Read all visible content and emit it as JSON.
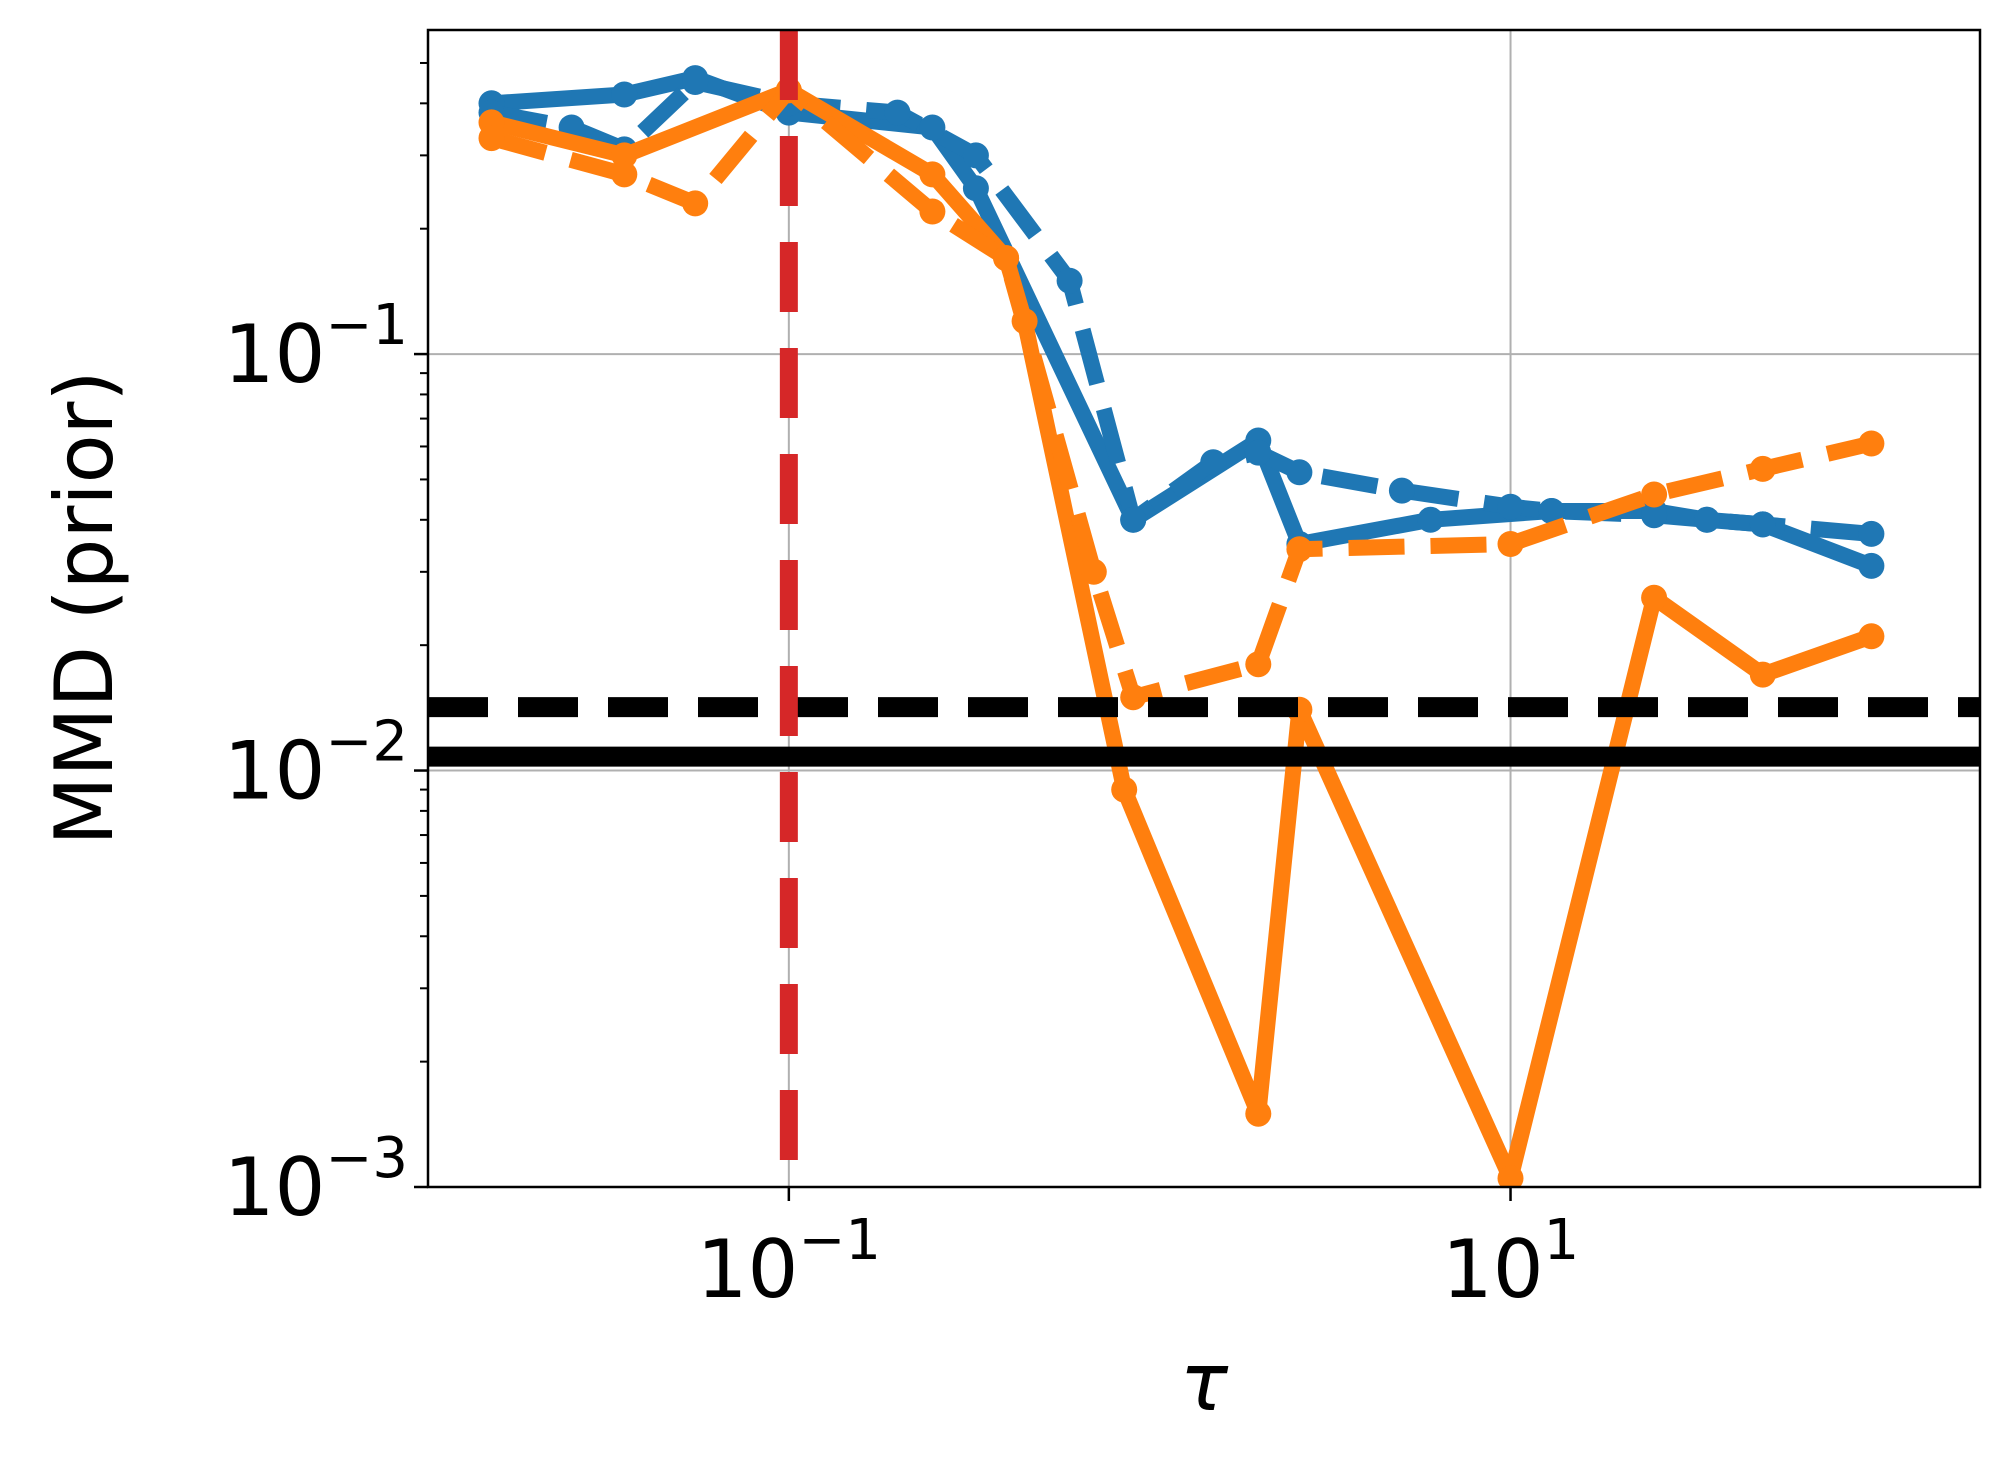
{
  "chart_data": {
    "type": "line",
    "xlabel": "τ",
    "ylabel": "MMD (prior)",
    "xscale": "log",
    "yscale": "log",
    "xlim": [
      0.01,
      200
    ],
    "ylim": [
      0.001,
      0.6
    ],
    "grid": true,
    "x_ticks": [
      {
        "value": 0.1,
        "base": "10",
        "exp": "−1"
      },
      {
        "value": 10,
        "base": "10",
        "exp": "1"
      }
    ],
    "y_ticks": [
      {
        "value": 0.1,
        "base": "10",
        "exp": "−1"
      },
      {
        "value": 0.01,
        "base": "10",
        "exp": "−2"
      },
      {
        "value": 0.001,
        "base": "10",
        "exp": "−3"
      }
    ],
    "series": [
      {
        "color": "#1f77b4",
        "style": "solid",
        "x": [
          0.015,
          0.035,
          0.055,
          0.1,
          0.25,
          0.33,
          0.9,
          2.0,
          2.6,
          6.0,
          13,
          25,
          35,
          50,
          100
        ],
        "y": [
          0.4,
          0.42,
          0.46,
          0.38,
          0.35,
          0.25,
          0.04,
          0.062,
          0.035,
          0.04,
          0.042,
          0.042,
          0.04,
          0.039,
          0.031
        ]
      },
      {
        "color": "#1f77b4",
        "style": "dashed",
        "x": [
          0.015,
          0.025,
          0.035,
          0.055,
          0.1,
          0.2,
          0.33,
          0.6,
          0.9,
          1.5,
          2.0,
          2.6,
          5,
          10,
          13,
          25,
          35,
          50,
          100
        ],
        "y": [
          0.38,
          0.35,
          0.31,
          0.45,
          0.4,
          0.38,
          0.3,
          0.15,
          0.04,
          0.055,
          0.058,
          0.052,
          0.047,
          0.043,
          0.042,
          0.041,
          0.04,
          0.039,
          0.037
        ]
      },
      {
        "color": "#ff7f0e",
        "style": "solid",
        "x": [
          0.015,
          0.035,
          0.1,
          0.25,
          0.4,
          0.45,
          0.85,
          2.0,
          2.6,
          10,
          25,
          50,
          100
        ],
        "y": [
          0.36,
          0.3,
          0.43,
          0.27,
          0.17,
          0.12,
          0.009,
          0.0015,
          0.014,
          0.00105,
          0.026,
          0.017,
          0.021
        ]
      },
      {
        "color": "#ff7f0e",
        "style": "dashed",
        "x": [
          0.015,
          0.035,
          0.055,
          0.1,
          0.25,
          0.4,
          0.7,
          0.9,
          2.0,
          2.6,
          10,
          25,
          50,
          100
        ],
        "y": [
          0.33,
          0.27,
          0.23,
          0.43,
          0.22,
          0.17,
          0.03,
          0.015,
          0.018,
          0.034,
          0.035,
          0.046,
          0.053,
          0.061
        ]
      }
    ],
    "hlines": [
      {
        "y": 0.0108,
        "color": "#000000",
        "style": "solid"
      },
      {
        "y": 0.0142,
        "color": "#000000",
        "style": "dashed"
      }
    ],
    "vlines": [
      {
        "x": 0.1,
        "color": "#d62728",
        "style": "dashed"
      }
    ]
  }
}
